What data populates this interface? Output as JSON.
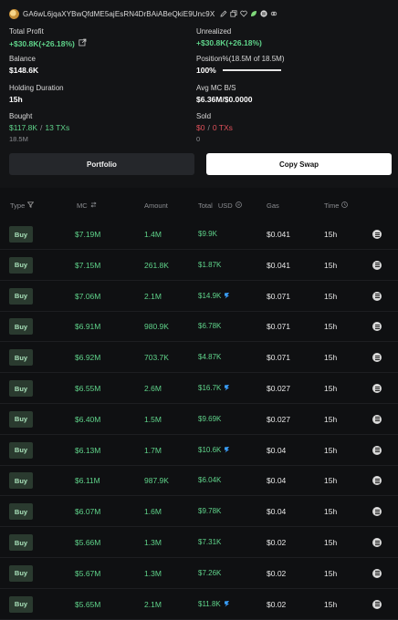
{
  "wallet": {
    "address": "GA6wL6jqaXYBwQfdME5ajEsRN4DrBAiABeQkiE9Unc9X",
    "icons": [
      "edit-icon",
      "copy-icon",
      "heart-icon",
      "leaf-icon",
      "solana-icon",
      "link-icon"
    ]
  },
  "stats": {
    "total_profit_label": "Total Profit",
    "total_profit_value": "+$30.8K(+26.18%)",
    "unrealized_label": "Unrealized",
    "unrealized_value": "+$30.8K(+26.18%)",
    "balance_label": "Balance",
    "balance_value": "$148.6K",
    "position_label": "Position%(18.5M of 18.5M)",
    "position_value": "100%",
    "position_fraction": 1.0,
    "holding_label": "Holding Duration",
    "holding_value": "15h",
    "avgmc_label": "Avg MC B/S",
    "avgmc_value": "$6.36M/$0.0000",
    "bought_label": "Bought",
    "bought_amount": "$117.8K",
    "bought_sep": "/",
    "bought_txs": "13 TXs",
    "bought_sub": "18.5M",
    "sold_label": "Sold",
    "sold_amount": "$0",
    "sold_sep": "/",
    "sold_txs": "0 TXs",
    "sold_sub": "0"
  },
  "buttons": {
    "portfolio": "Portfolio",
    "copy_swap": "Copy Swap"
  },
  "table": {
    "headers": {
      "type": "Type",
      "mc": "MC",
      "amount": "Amount",
      "total": "Total",
      "total_unit": "USD",
      "gas": "Gas",
      "time": "Time"
    },
    "rows": [
      {
        "type": "Buy",
        "mc": "$7.19M",
        "amount": "1.4M",
        "total": "$9.9K",
        "jup": false,
        "gas": "$0.041",
        "time": "15h"
      },
      {
        "type": "Buy",
        "mc": "$7.15M",
        "amount": "261.8K",
        "total": "$1.87K",
        "jup": false,
        "gas": "$0.041",
        "time": "15h"
      },
      {
        "type": "Buy",
        "mc": "$7.06M",
        "amount": "2.1M",
        "total": "$14.9K",
        "jup": true,
        "gas": "$0.071",
        "time": "15h"
      },
      {
        "type": "Buy",
        "mc": "$6.91M",
        "amount": "980.9K",
        "total": "$6.78K",
        "jup": false,
        "gas": "$0.071",
        "time": "15h"
      },
      {
        "type": "Buy",
        "mc": "$6.92M",
        "amount": "703.7K",
        "total": "$4.87K",
        "jup": false,
        "gas": "$0.071",
        "time": "15h"
      },
      {
        "type": "Buy",
        "mc": "$6.55M",
        "amount": "2.6M",
        "total": "$16.7K",
        "jup": true,
        "gas": "$0.027",
        "time": "15h"
      },
      {
        "type": "Buy",
        "mc": "$6.40M",
        "amount": "1.5M",
        "total": "$9.69K",
        "jup": false,
        "gas": "$0.027",
        "time": "15h"
      },
      {
        "type": "Buy",
        "mc": "$6.13M",
        "amount": "1.7M",
        "total": "$10.6K",
        "jup": true,
        "gas": "$0.04",
        "time": "15h"
      },
      {
        "type": "Buy",
        "mc": "$6.11M",
        "amount": "987.9K",
        "total": "$6.04K",
        "jup": false,
        "gas": "$0.04",
        "time": "15h"
      },
      {
        "type": "Buy",
        "mc": "$6.07M",
        "amount": "1.6M",
        "total": "$9.78K",
        "jup": false,
        "gas": "$0.04",
        "time": "15h"
      },
      {
        "type": "Buy",
        "mc": "$5.66M",
        "amount": "1.3M",
        "total": "$7.31K",
        "jup": false,
        "gas": "$0.02",
        "time": "15h"
      },
      {
        "type": "Buy",
        "mc": "$5.67M",
        "amount": "1.3M",
        "total": "$7.26K",
        "jup": false,
        "gas": "$0.02",
        "time": "15h"
      },
      {
        "type": "Buy",
        "mc": "$5.65M",
        "amount": "2.1M",
        "total": "$11.8K",
        "jup": true,
        "gas": "$0.02",
        "time": "15h"
      }
    ]
  },
  "colors": {
    "positive": "#5fd38a",
    "negative": "#e0505a",
    "buy_badge_bg": "#2a3a2f",
    "jupiter_accent": "#3aa0ff"
  }
}
